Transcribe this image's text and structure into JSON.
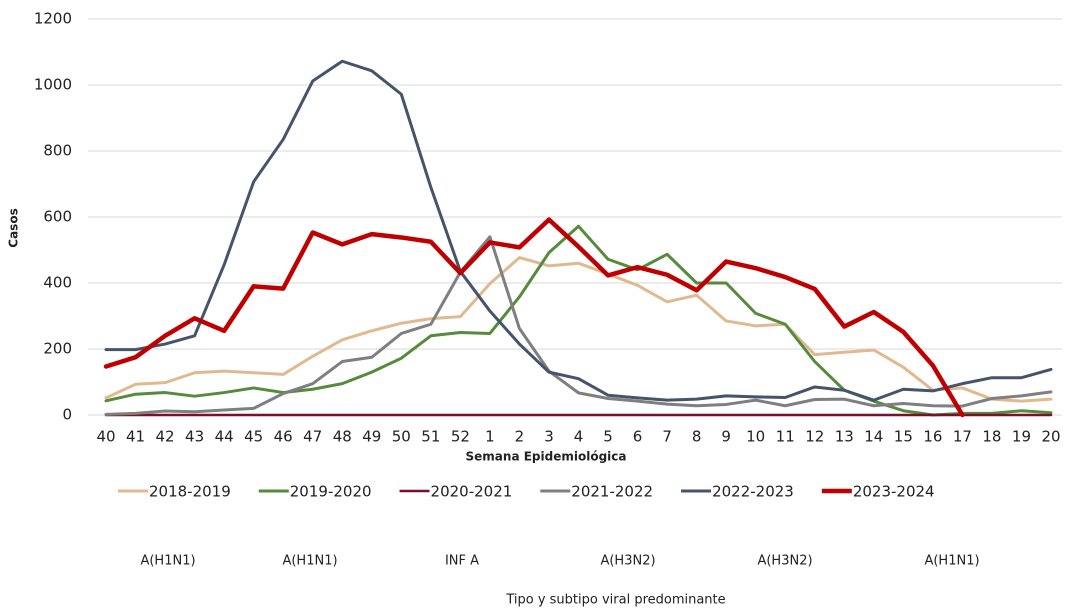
{
  "chart_data": {
    "type": "line",
    "y_label": "Casos",
    "x_label": "Semana Epidemiológica",
    "categories": [
      "40",
      "41",
      "42",
      "43",
      "44",
      "45",
      "46",
      "47",
      "48",
      "49",
      "50",
      "51",
      "52",
      "1",
      "2",
      "3",
      "4",
      "5",
      "6",
      "7",
      "8",
      "9",
      "10",
      "11",
      "12",
      "13",
      "14",
      "15",
      "16",
      "17",
      "18",
      "19",
      "20"
    ],
    "ylim": [
      0,
      1200
    ],
    "yticks": [
      0,
      200,
      400,
      600,
      800,
      1000,
      1200
    ],
    "grid": true,
    "series": [
      {
        "name": "2018-2019",
        "color": "#e0b98f",
        "line_width": 3,
        "values": [
          52,
          93,
          98,
          128,
          133,
          128,
          123,
          178,
          228,
          255,
          278,
          292,
          298,
          398,
          477,
          452,
          460,
          427,
          393,
          343,
          363,
          285,
          270,
          275,
          183,
          190,
          197,
          145,
          75,
          82,
          48,
          42,
          48
        ]
      },
      {
        "name": "2019-2020",
        "color": "#558b3a",
        "line_width": 3,
        "values": [
          43,
          63,
          68,
          57,
          68,
          82,
          68,
          78,
          95,
          130,
          172,
          240,
          250,
          247,
          358,
          492,
          572,
          472,
          440,
          487,
          400,
          400,
          308,
          275,
          162,
          75,
          42,
          13,
          0,
          5,
          5,
          13,
          7
        ]
      },
      {
        "name": "2020-2021",
        "color": "#7a0f2a",
        "line_width": 2.5,
        "values": [
          0,
          0,
          0,
          0,
          0,
          0,
          0,
          0,
          0,
          0,
          0,
          0,
          0,
          0,
          0,
          0,
          0,
          0,
          0,
          0,
          0,
          0,
          0,
          0,
          0,
          0,
          0,
          0,
          0,
          0,
          0,
          0,
          0
        ]
      },
      {
        "name": "2021-2022",
        "color": "#7f7f7f",
        "line_width": 3,
        "values": [
          2,
          5,
          12,
          10,
          15,
          20,
          65,
          95,
          162,
          175,
          247,
          275,
          433,
          540,
          262,
          133,
          67,
          50,
          42,
          33,
          28,
          32,
          45,
          28,
          47,
          48,
          28,
          35,
          28,
          27,
          50,
          58,
          70
        ]
      },
      {
        "name": "2022-2023",
        "color": "#44546a",
        "line_width": 3,
        "values": [
          198,
          198,
          215,
          240,
          455,
          707,
          835,
          1012,
          1072,
          1043,
          972,
          690,
          435,
          315,
          215,
          130,
          110,
          60,
          52,
          45,
          48,
          58,
          55,
          53,
          85,
          75,
          45,
          78,
          73,
          95,
          113,
          113,
          138
        ]
      },
      {
        "name": "2023-2024",
        "color": "#c00000",
        "line_width": 4.5,
        "values": [
          147,
          175,
          240,
          293,
          255,
          390,
          383,
          553,
          517,
          548,
          538,
          525,
          430,
          523,
          508,
          592,
          510,
          423,
          448,
          425,
          378,
          465,
          445,
          418,
          382,
          268,
          312,
          252,
          150,
          0,
          null,
          null,
          null
        ]
      }
    ],
    "annotations": [
      "A(H1N1)",
      "A(H1N1)",
      "INF A",
      "A(H3N2)",
      "A(H3N2)",
      "A(H1N1)"
    ],
    "annotation_title": "Tipo y subtipo viral predominante"
  }
}
